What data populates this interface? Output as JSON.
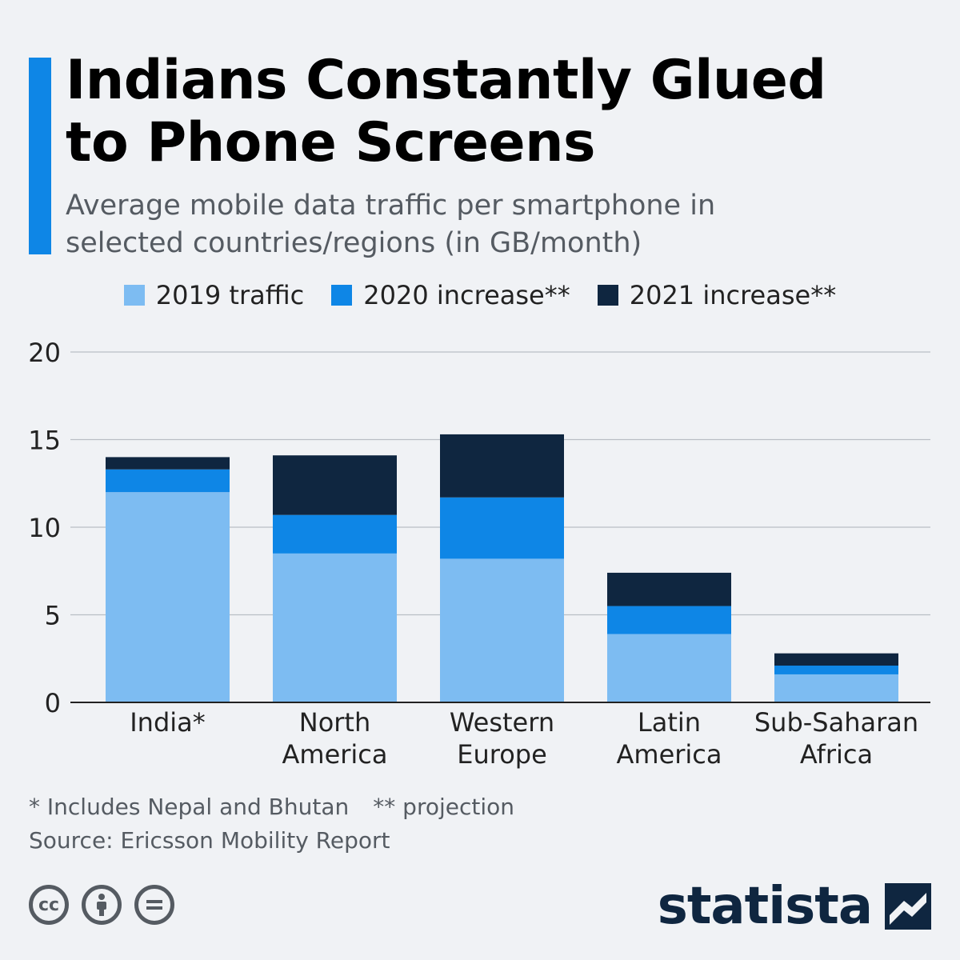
{
  "header": {
    "title": "Indians Constantly Glued to Phone Screens",
    "subtitle": "Average mobile data traffic per smartphone in selected countries/regions (in GB/month)"
  },
  "chart_data": {
    "type": "bar",
    "stacked": true,
    "categories": [
      "India*",
      "North America",
      "Western Europe",
      "Latin America",
      "Sub-Saharan Africa"
    ],
    "category_lines": [
      [
        "India*"
      ],
      [
        "North",
        "America"
      ],
      [
        "Western",
        "Europe"
      ],
      [
        "Latin",
        "America"
      ],
      [
        "Sub-Saharan",
        "Africa"
      ]
    ],
    "series": [
      {
        "name": "2019 traffic",
        "color": "#7dbcf2",
        "values": [
          12.0,
          8.5,
          8.2,
          3.9,
          1.6
        ]
      },
      {
        "name": "2020 increase**",
        "color": "#0e86e6",
        "values": [
          1.3,
          2.2,
          3.5,
          1.6,
          0.5
        ]
      },
      {
        "name": "2021 increase**",
        "color": "#0f2640",
        "values": [
          0.7,
          3.4,
          3.6,
          1.9,
          0.7
        ]
      }
    ],
    "ylim": [
      0,
      20
    ],
    "yticks": [
      0,
      5,
      10,
      15,
      20
    ],
    "grid": true,
    "legend_position": "top"
  },
  "footnotes": {
    "note1": "* Includes Nepal and Bhutan",
    "note2": "** projection",
    "source": "Source: Ericsson Mobility Report"
  },
  "brand": {
    "name": "statista"
  }
}
